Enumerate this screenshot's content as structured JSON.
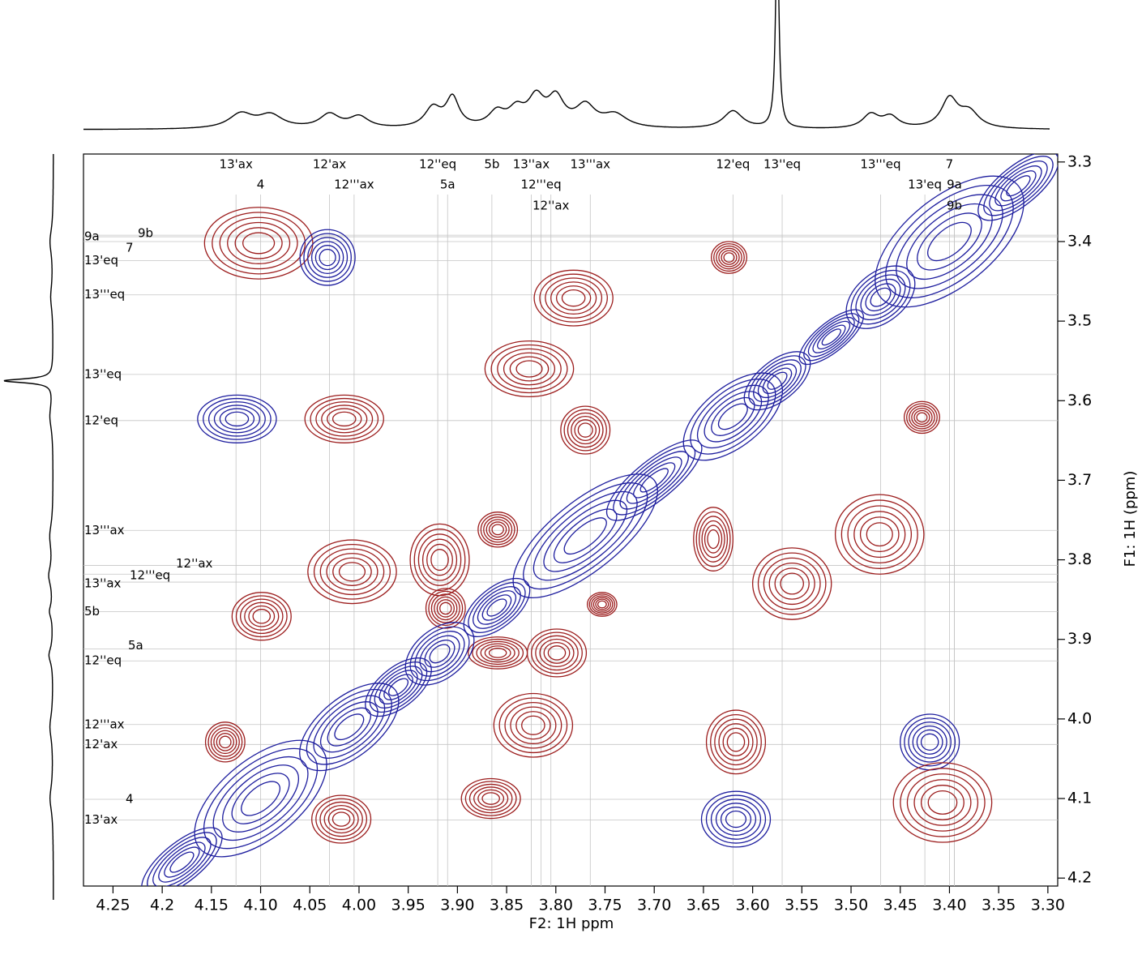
{
  "chart_data": {
    "type": "contour",
    "x_label": "F2: 1H ppm",
    "y_label": "F1: 1H (ppm)",
    "xlim": [
      4.28,
      3.29
    ],
    "ylim": [
      3.29,
      4.21
    ],
    "xticks": [
      4.25,
      4.2,
      4.15,
      {
        "value": 4.1,
        "label": "4.10"
      },
      4.05,
      {
        "value": 4.0,
        "label": "4.00"
      },
      3.95,
      {
        "value": 3.9,
        "label": "3.90"
      },
      3.85,
      {
        "value": 3.8,
        "label": "3.80"
      },
      3.75,
      {
        "value": 3.7,
        "label": "3.70"
      },
      3.65,
      {
        "value": 3.6,
        "label": "3.60"
      },
      3.55,
      {
        "value": 3.5,
        "label": "3.50"
      },
      3.45,
      {
        "value": 3.4,
        "label": "3.40"
      },
      3.35,
      {
        "value": 3.3,
        "label": "3.30"
      }
    ],
    "yticks": [
      3.3,
      3.4,
      3.5,
      3.6,
      3.7,
      3.8,
      3.9,
      {
        "value": 4.0,
        "label": "4.0"
      },
      4.1,
      4.2
    ],
    "colors": {
      "positive": "#9c1d1d",
      "negative": "#1d1d9e"
    },
    "contour_levels": 6,
    "peaks": [
      {
        "x": 4.102,
        "y": 3.402,
        "rx": 0.055,
        "ry": 0.045,
        "phase": "positive"
      },
      {
        "x": 4.032,
        "y": 3.42,
        "rx": 0.028,
        "ry": 0.035,
        "phase": "negative"
      },
      {
        "x": 3.624,
        "y": 3.42,
        "rx": 0.018,
        "ry": 0.02,
        "phase": "positive"
      },
      {
        "x": 3.782,
        "y": 3.471,
        "rx": 0.04,
        "ry": 0.035,
        "phase": "positive"
      },
      {
        "x": 3.827,
        "y": 3.56,
        "rx": 0.045,
        "ry": 0.035,
        "phase": "positive"
      },
      {
        "x": 3.77,
        "y": 3.637,
        "rx": 0.025,
        "ry": 0.03,
        "phase": "positive"
      },
      {
        "x": 4.124,
        "y": 3.623,
        "rx": 0.04,
        "ry": 0.03,
        "phase": "negative"
      },
      {
        "x": 4.015,
        "y": 3.623,
        "rx": 0.04,
        "ry": 0.03,
        "phase": "positive"
      },
      {
        "x": 3.428,
        "y": 3.621,
        "rx": 0.018,
        "ry": 0.02,
        "phase": "positive"
      },
      {
        "x": 3.64,
        "y": 3.774,
        "rx": 0.02,
        "ry": 0.04,
        "phase": "positive"
      },
      {
        "x": 3.859,
        "y": 3.762,
        "rx": 0.02,
        "ry": 0.022,
        "phase": "positive"
      },
      {
        "x": 3.918,
        "y": 3.8,
        "rx": 0.03,
        "ry": 0.045,
        "phase": "positive"
      },
      {
        "x": 3.912,
        "y": 3.861,
        "rx": 0.02,
        "ry": 0.025,
        "phase": "positive"
      },
      {
        "x": 4.007,
        "y": 3.815,
        "rx": 0.045,
        "ry": 0.04,
        "phase": "positive"
      },
      {
        "x": 3.471,
        "y": 3.768,
        "rx": 0.045,
        "ry": 0.05,
        "phase": "positive"
      },
      {
        "x": 3.56,
        "y": 3.83,
        "rx": 0.04,
        "ry": 0.045,
        "phase": "positive"
      },
      {
        "x": 4.099,
        "y": 3.871,
        "rx": 0.03,
        "ry": 0.03,
        "phase": "positive"
      },
      {
        "x": 3.859,
        "y": 3.917,
        "rx": 0.03,
        "ry": 0.02,
        "phase": "positive"
      },
      {
        "x": 3.799,
        "y": 3.917,
        "rx": 0.03,
        "ry": 0.03,
        "phase": "positive"
      },
      {
        "x": 3.753,
        "y": 3.856,
        "rx": 0.015,
        "ry": 0.015,
        "phase": "positive"
      },
      {
        "x": 3.823,
        "y": 4.008,
        "rx": 0.04,
        "ry": 0.04,
        "phase": "positive"
      },
      {
        "x": 4.136,
        "y": 4.029,
        "rx": 0.02,
        "ry": 0.025,
        "phase": "positive"
      },
      {
        "x": 3.617,
        "y": 4.029,
        "rx": 0.03,
        "ry": 0.04,
        "phase": "positive"
      },
      {
        "x": 3.42,
        "y": 4.029,
        "rx": 0.03,
        "ry": 0.035,
        "phase": "negative"
      },
      {
        "x": 4.018,
        "y": 4.126,
        "rx": 0.03,
        "ry": 0.03,
        "phase": "positive"
      },
      {
        "x": 3.866,
        "y": 4.1,
        "rx": 0.03,
        "ry": 0.025,
        "phase": "positive"
      },
      {
        "x": 3.617,
        "y": 4.126,
        "rx": 0.035,
        "ry": 0.035,
        "phase": "negative"
      },
      {
        "x": 3.407,
        "y": 4.105,
        "rx": 0.05,
        "ry": 0.05,
        "phase": "positive"
      },
      {
        "x": 4.18,
        "y": 4.18,
        "rx": 0.05,
        "ry": 0.02,
        "phase": "negative"
      },
      {
        "x": 4.1,
        "y": 4.1,
        "rx": 0.08,
        "ry": 0.04,
        "phase": "negative"
      },
      {
        "x": 4.01,
        "y": 4.01,
        "rx": 0.06,
        "ry": 0.03,
        "phase": "negative"
      },
      {
        "x": 3.96,
        "y": 3.96,
        "rx": 0.04,
        "ry": 0.02,
        "phase": "negative"
      },
      {
        "x": 3.918,
        "y": 3.918,
        "rx": 0.04,
        "ry": 0.025,
        "phase": "negative"
      },
      {
        "x": 3.86,
        "y": 3.86,
        "rx": 0.04,
        "ry": 0.02,
        "phase": "negative"
      },
      {
        "x": 3.77,
        "y": 3.77,
        "rx": 0.09,
        "ry": 0.035,
        "phase": "negative"
      },
      {
        "x": 3.7,
        "y": 3.7,
        "rx": 0.06,
        "ry": 0.02,
        "phase": "negative"
      },
      {
        "x": 3.62,
        "y": 3.62,
        "rx": 0.06,
        "ry": 0.03,
        "phase": "negative"
      },
      {
        "x": 3.575,
        "y": 3.575,
        "rx": 0.04,
        "ry": 0.02,
        "phase": "negative"
      },
      {
        "x": 3.52,
        "y": 3.52,
        "rx": 0.04,
        "ry": 0.015,
        "phase": "negative"
      },
      {
        "x": 3.47,
        "y": 3.47,
        "rx": 0.04,
        "ry": 0.025,
        "phase": "negative"
      },
      {
        "x": 3.4,
        "y": 3.4,
        "rx": 0.09,
        "ry": 0.045,
        "phase": "negative"
      },
      {
        "x": 3.33,
        "y": 3.33,
        "rx": 0.05,
        "ry": 0.02,
        "phase": "negative"
      }
    ],
    "x_assignments": [
      {
        "label": "13'ax",
        "ppm": 4.125
      },
      {
        "label": "12'ax",
        "ppm": 4.03
      },
      {
        "label": "12''eq",
        "ppm": 3.92
      },
      {
        "label": "5b",
        "ppm": 3.865
      },
      {
        "label": "13''ax",
        "ppm": 3.825
      },
      {
        "label": "13'''ax",
        "ppm": 3.765
      },
      {
        "label": "12'eq",
        "ppm": 3.62
      },
      {
        "label": "13''eq",
        "ppm": 3.57
      },
      {
        "label": "13'''eq",
        "ppm": 3.47
      },
      {
        "label": "7",
        "ppm": 3.4
      },
      {
        "label": "4",
        "ppm": 4.1
      },
      {
        "label": "12'''ax",
        "ppm": 4.005
      },
      {
        "label": "5a",
        "ppm": 3.91
      },
      {
        "label": "12'''eq",
        "ppm": 3.815
      },
      {
        "label": "13'eq",
        "ppm": 3.425
      },
      {
        "label": "9a",
        "ppm": 3.395
      },
      {
        "label": "12''ax",
        "ppm": 3.805
      },
      {
        "label": "9b",
        "ppm": 3.395
      }
    ],
    "y_assignments": [
      {
        "label": "9a",
        "ppm": 3.394
      },
      {
        "label": "7",
        "ppm": 3.4
      },
      {
        "label": "9b",
        "ppm": 3.392
      },
      {
        "label": "13'eq",
        "ppm": 3.424
      },
      {
        "label": "13'''eq",
        "ppm": 3.467
      },
      {
        "label": "13''eq",
        "ppm": 3.567
      },
      {
        "label": "12'eq",
        "ppm": 3.625
      },
      {
        "label": "13'''ax",
        "ppm": 3.763
      },
      {
        "label": "12''ax",
        "ppm": 3.807
      },
      {
        "label": "12'''eq",
        "ppm": 3.818
      },
      {
        "label": "13''ax",
        "ppm": 3.828
      },
      {
        "label": "5b",
        "ppm": 3.865
      },
      {
        "label": "5a",
        "ppm": 3.912
      },
      {
        "label": "12''eq",
        "ppm": 3.927
      },
      {
        "label": "12'''ax",
        "ppm": 4.007
      },
      {
        "label": "12'ax",
        "ppm": 4.032
      },
      {
        "label": "4",
        "ppm": 4.101
      },
      {
        "label": "13'ax",
        "ppm": 4.127
      }
    ],
    "f2_projection": {
      "ppm": [
        4.12,
        4.09,
        4.03,
        4.0,
        3.925,
        3.905,
        3.86,
        3.84,
        3.82,
        3.8,
        3.77,
        3.74,
        3.62,
        3.575,
        3.48,
        3.46,
        3.4,
        3.38
      ],
      "height": [
        18,
        16,
        17,
        14,
        24,
        36,
        18,
        20,
        34,
        34,
        26,
        16,
        22,
        260,
        17,
        14,
        36,
        20
      ],
      "width": [
        0.015,
        0.015,
        0.012,
        0.012,
        0.01,
        0.008,
        0.01,
        0.01,
        0.01,
        0.01,
        0.012,
        0.015,
        0.012,
        0.002,
        0.01,
        0.01,
        0.01,
        0.012
      ]
    },
    "f1_projection": {
      "ppm": [
        3.4,
        3.47,
        3.575,
        3.62,
        3.77,
        3.82,
        3.865,
        3.92,
        4.01,
        4.1
      ],
      "height": [
        4,
        3,
        60,
        4,
        4,
        5,
        4,
        5,
        4,
        4
      ],
      "width": [
        0.02,
        0.02,
        0.003,
        0.02,
        0.02,
        0.015,
        0.01,
        0.012,
        0.02,
        0.02
      ]
    }
  }
}
